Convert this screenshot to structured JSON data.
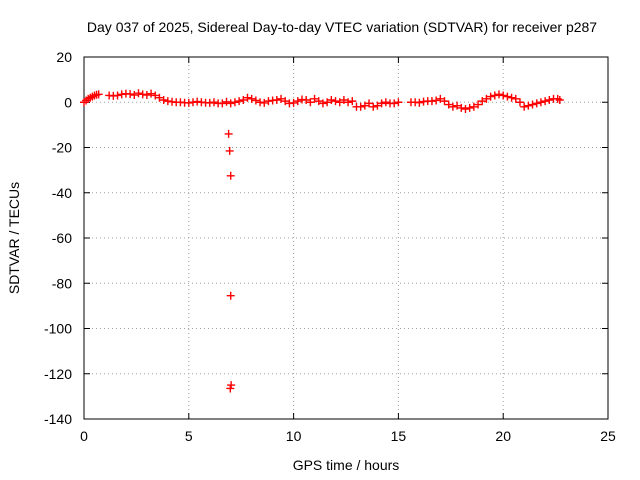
{
  "chart_data": {
    "type": "scatter",
    "title": "Day 037 of 2025, Sidereal Day-to-day VTEC variation (SDTVAR) for receiver p287",
    "xlabel": "GPS time / hours",
    "ylabel": "SDTVAR / TECUs",
    "xlim": [
      0,
      25
    ],
    "ylim": [
      -140,
      20
    ],
    "xticks": [
      0,
      5,
      10,
      15,
      20,
      25
    ],
    "yticks": [
      20,
      0,
      -20,
      -40,
      -60,
      -80,
      -100,
      -120,
      -140
    ],
    "xtick_labels": [
      "0",
      "5",
      "10",
      "15",
      "20",
      "25"
    ],
    "ytick_labels": [
      "20",
      "0",
      "-20",
      "-40",
      "-60",
      "-80",
      "-100",
      "-120",
      "-140"
    ],
    "grid": true,
    "marker": "+",
    "color": "#ff0000",
    "series": [
      {
        "name": "SDTVAR",
        "x": [
          0.0,
          0.1,
          0.2,
          0.3,
          0.4,
          0.5,
          0.6,
          0.7,
          1.2,
          1.4,
          1.6,
          1.8,
          2.0,
          2.2,
          2.4,
          2.6,
          2.8,
          3.0,
          3.2,
          3.4,
          3.6,
          3.8,
          4.0,
          4.2,
          4.4,
          4.6,
          4.8,
          5.0,
          5.2,
          5.4,
          5.6,
          5.8,
          6.0,
          6.2,
          6.4,
          6.6,
          6.8,
          7.0,
          7.2,
          7.4,
          7.6,
          7.8,
          8.0,
          8.2,
          8.4,
          8.6,
          8.8,
          9.0,
          9.2,
          9.4,
          9.6,
          9.8,
          10.0,
          10.2,
          10.4,
          10.6,
          10.8,
          11.0,
          11.2,
          11.4,
          11.6,
          11.8,
          12.0,
          12.2,
          12.4,
          12.6,
          12.8,
          13.0,
          13.2,
          13.4,
          13.6,
          13.8,
          14.0,
          14.2,
          14.4,
          14.6,
          14.8,
          15.0,
          15.6,
          15.8,
          16.0,
          16.2,
          16.4,
          16.6,
          16.8,
          17.0,
          17.2,
          17.4,
          17.6,
          17.8,
          18.0,
          18.2,
          18.4,
          18.6,
          18.8,
          19.0,
          19.2,
          19.4,
          19.6,
          19.8,
          20.0,
          20.2,
          20.4,
          20.6,
          20.8,
          21.0,
          21.2,
          21.4,
          21.6,
          21.8,
          22.0,
          22.2,
          22.4,
          22.6,
          22.7,
          6.9,
          6.95,
          7.0,
          7.0,
          7.02,
          6.98
        ],
        "y": [
          0.0,
          0.8,
          1.5,
          2.0,
          2.5,
          3.0,
          3.3,
          3.5,
          3.0,
          2.8,
          3.0,
          3.5,
          3.8,
          3.6,
          3.2,
          4.0,
          3.5,
          3.2,
          3.8,
          3.0,
          2.0,
          1.0,
          0.5,
          0.2,
          0.0,
          0.0,
          -0.2,
          -0.3,
          0.0,
          0.3,
          0.0,
          -0.2,
          -0.3,
          0.0,
          -0.5,
          -0.5,
          0.2,
          -0.5,
          0.0,
          0.5,
          1.0,
          2.0,
          1.5,
          0.8,
          0.0,
          -0.3,
          0.5,
          0.8,
          1.0,
          1.5,
          0.5,
          -0.5,
          -0.3,
          0.5,
          1.2,
          1.0,
          0.0,
          1.5,
          0.5,
          -0.5,
          0.0,
          1.0,
          0.5,
          0.0,
          1.0,
          0.0,
          0.5,
          -2.0,
          -2.0,
          -1.5,
          -0.5,
          -2.0,
          -1.5,
          -0.5,
          0.0,
          -0.5,
          -0.5,
          0.0,
          0.0,
          0.0,
          -0.2,
          0.3,
          0.5,
          0.5,
          0.8,
          1.5,
          0.5,
          -1.0,
          -2.0,
          -1.5,
          -2.5,
          -3.0,
          -2.5,
          -2.0,
          -1.0,
          0.5,
          1.5,
          2.5,
          3.0,
          3.5,
          3.0,
          2.5,
          2.0,
          1.5,
          0.0,
          -2.0,
          -1.5,
          -1.0,
          -0.5,
          0.0,
          0.5,
          1.0,
          1.5,
          1.5,
          1.0,
          -14.0,
          -21.5,
          -32.5,
          -85.5,
          -125.0,
          -126.5
        ]
      }
    ]
  }
}
